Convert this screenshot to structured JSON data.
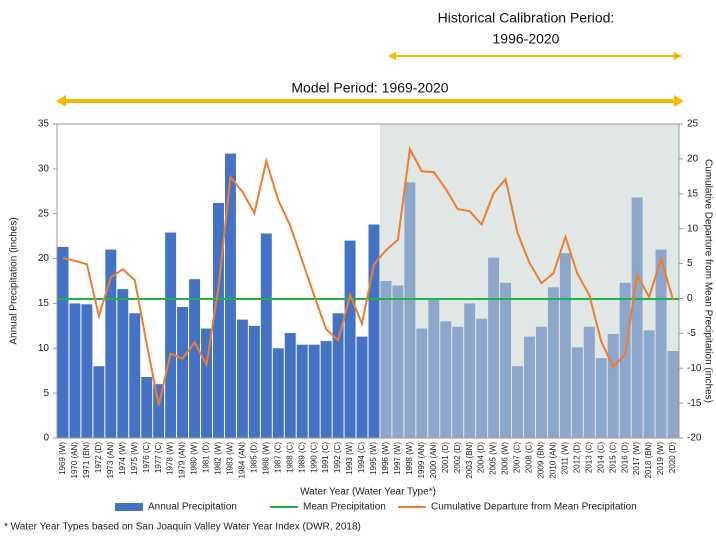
{
  "annotations": {
    "calibration": [
      "Historical Calibration Period:",
      "1996-2020"
    ],
    "model": "Model Period: 1969-2020"
  },
  "chart_data": {
    "type": "bar",
    "categories": [
      "1969 (W)",
      "1970 (AN)",
      "1971 (BN)",
      "1972 (D)",
      "1973 (AN)",
      "1974 (W)",
      "1975 (W)",
      "1976 (C)",
      "1977 (C)",
      "1978 (W)",
      "1979 (AN)",
      "1980 (W)",
      "1981 (D)",
      "1982 (W)",
      "1983 (W)",
      "1984 (AN)",
      "1985 (D)",
      "1986 (W)",
      "1987 (C)",
      "1988 (C)",
      "1989 (C)",
      "1990 (C)",
      "1991 (C)",
      "1992 (C)",
      "1993 (W)",
      "1994 (C)",
      "1995 (W)",
      "1996 (W)",
      "1997 (W)",
      "1998 (W)",
      "1999 (AN)",
      "2000 (AN)",
      "2001 (D)",
      "2002 (D)",
      "2003 (BN)",
      "2004 (D)",
      "2005 (W)",
      "2006 (W)",
      "2007 (C)",
      "2008 (C)",
      "2009 (BN)",
      "2010 (AN)",
      "2011 (W)",
      "2012 (D)",
      "2013 (C)",
      "2014 (C)",
      "2015 (C)",
      "2016 (D)",
      "2017 (W)",
      "2018 (BN)",
      "2019 (W)",
      "2020 (D)"
    ],
    "series": [
      {
        "name": "Annual Precipitation",
        "color": "#4472c4",
        "values": [
          21.3,
          15.0,
          14.9,
          8.0,
          21.0,
          16.6,
          13.9,
          6.8,
          6.0,
          22.9,
          14.6,
          17.7,
          12.2,
          26.2,
          31.7,
          13.2,
          12.5,
          22.8,
          10.0,
          11.7,
          10.4,
          10.4,
          10.8,
          13.9,
          22.0,
          11.3,
          23.8,
          17.5,
          17.0,
          28.5,
          12.2,
          15.5,
          13.0,
          12.4,
          15.0,
          13.3,
          20.1,
          17.3,
          8.0,
          11.3,
          12.4,
          16.8,
          20.6,
          10.1,
          12.4,
          8.9,
          11.6,
          17.3,
          26.8,
          12.0,
          21.0,
          9.7
        ]
      },
      {
        "name": "Mean Precipitation",
        "color": "#1fb14a",
        "value": 15.5
      },
      {
        "name": "Cumulative Departure from Mean Precipitation",
        "color": "#ed7d31",
        "axis": "y2",
        "values": [
          5.8,
          5.4,
          4.9,
          -2.5,
          3.0,
          4.2,
          2.6,
          -6.5,
          -15.3,
          -7.9,
          -8.6,
          -6.3,
          -9.5,
          1.6,
          17.4,
          15.3,
          12.2,
          19.7,
          14.1,
          10.4,
          5.4,
          0.4,
          -4.4,
          -6.0,
          0.5,
          -3.6,
          4.9,
          6.9,
          8.4,
          21.4,
          18.2,
          18.1,
          15.7,
          12.8,
          12.5,
          10.6,
          15.1,
          17.1,
          9.4,
          5.1,
          2.2,
          3.6,
          8.8,
          3.6,
          0.5,
          -6.2,
          -9.8,
          -8.0,
          3.4,
          0.2,
          5.7,
          -0.2
        ]
      }
    ],
    "xlabel": "Water Year (Water Year Type*)",
    "ylabel": "Annual Precipitation (inches)",
    "y2label": "Cumulative Departure from Mean Precipitation (inches)",
    "ylim": [
      0,
      35
    ],
    "yticks": [
      0,
      5,
      10,
      15,
      20,
      25,
      30,
      35
    ],
    "y2lim": [
      -20,
      25
    ],
    "y2ticks": [
      -20,
      -15,
      -10,
      -5,
      0,
      5,
      10,
      15,
      20,
      25
    ],
    "shade_start": "1996 (W)",
    "shade_color": "#c9d3cd",
    "footnote": "* Water Year Types based on San Joaquin Valley Water Year Index (DWR, 2018)"
  }
}
